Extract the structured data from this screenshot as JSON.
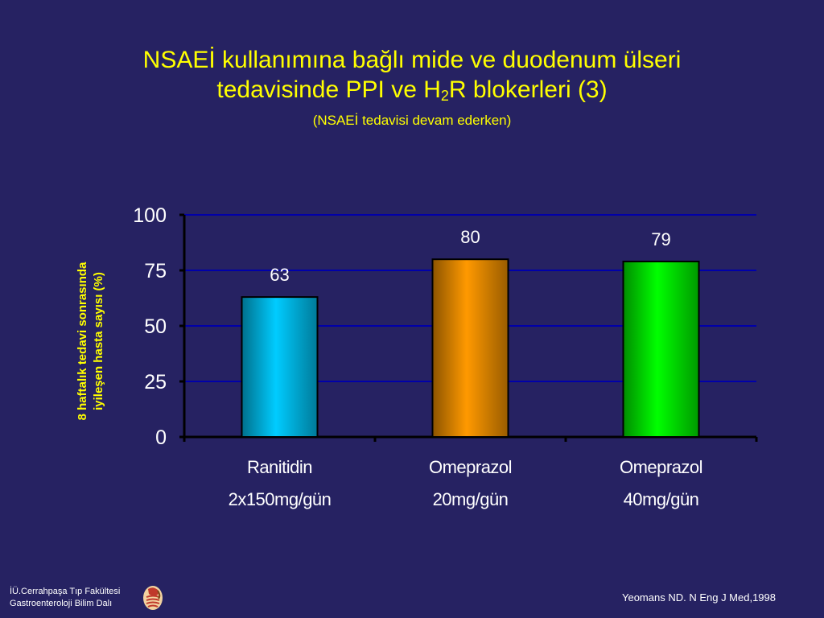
{
  "header": {
    "title_line1": "NSAEİ kullanımına bağlı mide ve duodenum ülseri",
    "title_line2_pre": "tedavisinde PPI ve H",
    "title_line2_sub": "2",
    "title_line2_post": "R blokerleri (3)",
    "subtitle": "(NSAEİ tedavisi devam ederken)"
  },
  "chart_data": {
    "type": "bar",
    "categories": [
      {
        "name": "Ranitidin",
        "dose": "2x150mg/gün"
      },
      {
        "name": "Omeprazol",
        "dose": "20mg/gün"
      },
      {
        "name": "Omeprazol",
        "dose": "40mg/gün"
      }
    ],
    "values": [
      63,
      80,
      79
    ],
    "bar_colors": [
      "#00ccff",
      "#ff9900",
      "#00ff00"
    ],
    "ylabel_line1": "8 haftalık tedavi sonrasında",
    "ylabel_line2": "iyileşen hasta sayısı  (%)",
    "ylim": [
      0,
      100
    ],
    "yticks": [
      0,
      25,
      50,
      75,
      100
    ],
    "grid": true
  },
  "footer": {
    "institution_line1": "İÜ.Cerrahpaşa Tıp Fakültesi",
    "institution_line2": "Gastroenteroloji Bilim Dalı",
    "citation": "Yeomans ND. N Eng J Med,1998"
  },
  "icons": {
    "logo": "digestive-system-icon"
  },
  "colors": {
    "background": "#262262",
    "title": "#ffff00",
    "gridline": "#0000aa",
    "axis": "#000000"
  }
}
